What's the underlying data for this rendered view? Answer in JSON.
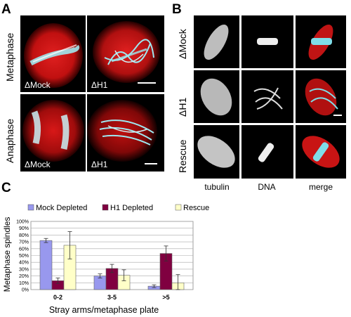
{
  "panelA": {
    "letter": "A",
    "row_labels": [
      "Metaphase",
      "Anaphase"
    ],
    "cells": [
      {
        "label": "ΔMock"
      },
      {
        "label": "ΔH1"
      },
      {
        "label": "ΔMock"
      },
      {
        "label": "ΔH1"
      }
    ],
    "colors": {
      "tubulin": "#d01818",
      "dna": "#6fd6e6"
    }
  },
  "panelB": {
    "letter": "B",
    "row_labels": [
      "ΔMock",
      "ΔH1",
      "Rescue"
    ],
    "col_labels": [
      "tubulin",
      "DNA",
      "merge"
    ]
  },
  "panelC": {
    "letter": "C",
    "chart_data": {
      "type": "bar",
      "categories": [
        "0-2",
        "3-5",
        ">5"
      ],
      "series": [
        {
          "name": "Mock Depleted",
          "color": "#9898ee",
          "values": [
            72,
            20,
            5
          ],
          "errors": [
            3,
            3,
            2
          ]
        },
        {
          "name": "H1 Depleted",
          "color": "#800040",
          "values": [
            13,
            31,
            53
          ],
          "errors": [
            4,
            6,
            11
          ]
        },
        {
          "name": "Rescue",
          "color": "#ffffc8",
          "values": [
            65,
            21,
            10
          ],
          "errors": [
            20,
            8,
            12
          ]
        }
      ],
      "ylabel": "Metaphase spindles",
      "xlabel": "Stray arms/metaphase plate",
      "ylim": [
        0,
        100
      ],
      "yticks": [
        "0%",
        "10%",
        "20%",
        "30%",
        "40%",
        "50%",
        "60%",
        "70%",
        "80%",
        "90%",
        "100%"
      ],
      "grid": true,
      "legend": "top"
    }
  }
}
